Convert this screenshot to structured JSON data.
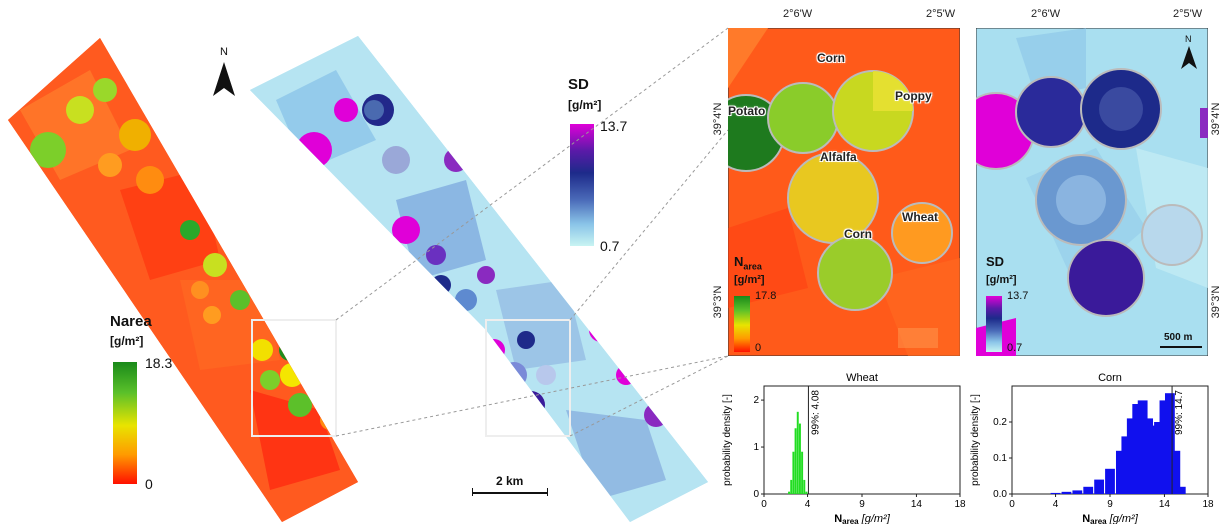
{
  "colors": {
    "narea_low": "#ff1a00",
    "narea_mid": "#f5e800",
    "narea_high": "#1a8a1a",
    "sd_low": "#bdf2f2",
    "sd_mid": "#1d2a8a",
    "sd_high": "#e000d8",
    "field_base": "#ff5a1a",
    "sd_base": "#a9dff0",
    "wheat_bar": "#22dd22",
    "corn_bar": "#1010ee"
  },
  "north_arrow": {
    "label": "N"
  },
  "narea_legend": {
    "title": "Narea",
    "unit": "[g/m²]",
    "max": "18.3",
    "min": "0"
  },
  "sd_legend": {
    "title": "SD",
    "unit": "[g/m²]",
    "max": "13.7",
    "min": "0.7"
  },
  "scale_bar": {
    "label": "2 km"
  },
  "inset_narea": {
    "coord_top_left": "2°6'W",
    "coord_top_right": "2°5'W",
    "coord_left_top": "39°4'N",
    "coord_left_bottom": "39°3'N",
    "legend_title": "N",
    "legend_title_sub": "area",
    "legend_unit": "[g/m²]",
    "legend_max": "17.8",
    "legend_min": "0",
    "crops": [
      "Corn",
      "Potato",
      "Poppy",
      "Alfalfa",
      "Wheat",
      "Corn"
    ]
  },
  "inset_sd": {
    "coord_top_left": "2°6'W",
    "coord_top_right": "2°5'W",
    "coord_right_top": "39°4'N",
    "coord_right_bottom": "39°3'N",
    "north_label": "N",
    "legend_title": "SD",
    "legend_unit": "[g/m²]",
    "legend_max": "13.7",
    "legend_min": "0.7",
    "scale_label": "500 m"
  },
  "hist_wheat": {
    "title": "Wheat",
    "ylabel": "probability density [-]",
    "xlabel_main": "N",
    "xlabel_sub": "area",
    "xlabel_unit": "[g/m²]",
    "xticks": [
      "0",
      "4",
      "9",
      "14",
      "18"
    ],
    "yticks": [
      "0",
      "1",
      "2"
    ],
    "percentile_label": "99%: 4.08"
  },
  "hist_corn": {
    "title": "Corn",
    "ylabel": "probability density [-]",
    "xlabel_main": "N",
    "xlabel_sub": "area",
    "xlabel_unit": "[g/m²]",
    "xticks": [
      "0",
      "4",
      "9",
      "14",
      "18"
    ],
    "yticks": [
      "0.0",
      "0.1",
      "0.2"
    ],
    "percentile_label": "99%: 14.7"
  },
  "chart_data": [
    {
      "type": "bar",
      "title": "Wheat",
      "xlabel": "Narea [g/m²]",
      "ylabel": "probability density [-]",
      "xlim": [
        0,
        18
      ],
      "ylim": [
        0,
        2.3
      ],
      "x": [
        2.3,
        2.5,
        2.7,
        2.9,
        3.1,
        3.3,
        3.5,
        3.7,
        3.9
      ],
      "values": [
        0.05,
        0.3,
        0.9,
        1.4,
        1.75,
        1.5,
        0.9,
        0.3,
        0.05
      ],
      "percentile_99": 4.08
    },
    {
      "type": "bar",
      "title": "Corn",
      "xlabel": "Narea [g/m²]",
      "ylabel": "probability density [-]",
      "xlim": [
        0,
        18
      ],
      "ylim": [
        0,
        0.3
      ],
      "x": [
        4,
        5,
        6,
        7,
        8,
        9,
        10,
        10.5,
        11,
        11.5,
        12,
        12.5,
        13,
        13.5,
        14,
        14.5,
        15,
        15.5
      ],
      "values": [
        0.003,
        0.006,
        0.01,
        0.02,
        0.04,
        0.07,
        0.12,
        0.16,
        0.21,
        0.25,
        0.26,
        0.21,
        0.19,
        0.2,
        0.26,
        0.28,
        0.12,
        0.02
      ],
      "percentile_99": 14.7
    }
  ]
}
